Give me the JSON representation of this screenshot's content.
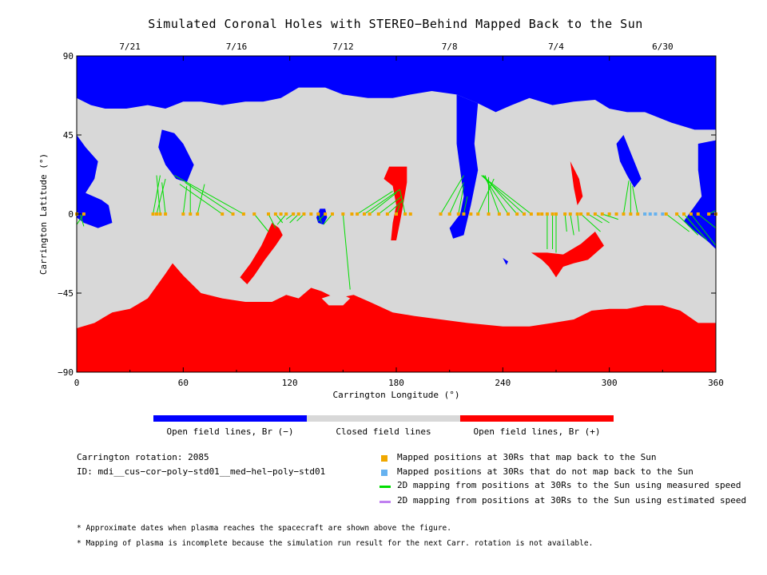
{
  "title": "Simulated Coronal Holes with STEREO−Behind Mapped Back to the Sun",
  "chart_data": {
    "type": "map",
    "xlabel": "Carrington Longitude (°)",
    "ylabel": "Carrington Latitude (°)",
    "xlim": [
      0,
      360
    ],
    "ylim": [
      -90,
      90
    ],
    "x_ticks": [
      "0",
      "60",
      "120",
      "180",
      "240",
      "300",
      "360"
    ],
    "y_ticks": [
      "90",
      "45",
      "0",
      "−45",
      "−90"
    ],
    "top_axis_dates": [
      {
        "label": "7/21",
        "lon": 30
      },
      {
        "label": "7/16",
        "lon": 90
      },
      {
        "label": "7/12",
        "lon": 150
      },
      {
        "label": "7/8",
        "lon": 210
      },
      {
        "label": "7/4",
        "lon": 270
      },
      {
        "label": "6/30",
        "lon": 330
      }
    ],
    "region_colors": {
      "negative": "#0000ff",
      "closed": "#d8d8d8",
      "positive": "#ff0000"
    },
    "mapped_positions": [
      0,
      4,
      43,
      45,
      47,
      50,
      60,
      64,
      68,
      82,
      88,
      94,
      100,
      108,
      112,
      115,
      118,
      122,
      125,
      128,
      132,
      136,
      140,
      144,
      150,
      155,
      158,
      162,
      165,
      170,
      175,
      180,
      185,
      188,
      205,
      210,
      215,
      218,
      222,
      226,
      232,
      238,
      243,
      248,
      252,
      256,
      260,
      262,
      265,
      268,
      270,
      275,
      278,
      282,
      284,
      288,
      292,
      296,
      300,
      304,
      308,
      312,
      316,
      320,
      332,
      338,
      342,
      346,
      350,
      356,
      360
    ],
    "unmapped_positions": [
      320,
      323,
      326,
      330
    ],
    "mapping_lines": [
      [
        2,
        0,
        4,
        -7
      ],
      [
        4,
        0,
        0,
        -6
      ],
      [
        43,
        0,
        47,
        22
      ],
      [
        45,
        0,
        50,
        20
      ],
      [
        47,
        0,
        45,
        22
      ],
      [
        50,
        0,
        48,
        18
      ],
      [
        60,
        0,
        62,
        16
      ],
      [
        64,
        0,
        64,
        17
      ],
      [
        68,
        0,
        72,
        17
      ],
      [
        82,
        0,
        58,
        17
      ],
      [
        88,
        0,
        61,
        18
      ],
      [
        94,
        0,
        55,
        22
      ],
      [
        100,
        0,
        108,
        -10
      ],
      [
        108,
        0,
        112,
        -8
      ],
      [
        112,
        0,
        116,
        -5
      ],
      [
        118,
        0,
        113,
        -6
      ],
      [
        122,
        0,
        118,
        -3
      ],
      [
        125,
        0,
        120,
        -5
      ],
      [
        128,
        0,
        124,
        -4
      ],
      [
        136,
        0,
        138,
        -5
      ],
      [
        140,
        0,
        136,
        -4
      ],
      [
        144,
        0,
        139,
        -6
      ],
      [
        150,
        0,
        154,
        -43
      ],
      [
        158,
        0,
        178,
        13
      ],
      [
        162,
        0,
        182,
        14
      ],
      [
        165,
        0,
        180,
        12
      ],
      [
        170,
        0,
        183,
        10
      ],
      [
        175,
        0,
        184,
        8
      ],
      [
        180,
        0,
        182,
        5
      ],
      [
        185,
        0,
        182,
        14
      ],
      [
        205,
        0,
        218,
        22
      ],
      [
        210,
        0,
        218,
        18
      ],
      [
        215,
        0,
        218,
        16
      ],
      [
        218,
        0,
        220,
        10
      ],
      [
        226,
        0,
        235,
        20
      ],
      [
        232,
        0,
        232,
        21
      ],
      [
        238,
        0,
        230,
        22
      ],
      [
        243,
        0,
        229,
        22
      ],
      [
        248,
        0,
        229,
        22
      ],
      [
        252,
        0,
        228,
        22
      ],
      [
        256,
        0,
        228,
        22
      ],
      [
        265,
        0,
        265,
        -20
      ],
      [
        268,
        0,
        268,
        -20
      ],
      [
        270,
        0,
        270,
        -22
      ],
      [
        275,
        0,
        276,
        -10
      ],
      [
        278,
        0,
        280,
        -12
      ],
      [
        282,
        0,
        283,
        -10
      ],
      [
        284,
        0,
        295,
        -10
      ],
      [
        288,
        0,
        296,
        -5
      ],
      [
        292,
        0,
        300,
        -5
      ],
      [
        296,
        0,
        305,
        -3
      ],
      [
        308,
        0,
        311,
        19
      ],
      [
        312,
        0,
        312,
        18
      ],
      [
        316,
        0,
        313,
        16
      ],
      [
        332,
        0,
        345,
        -10
      ],
      [
        338,
        0,
        350,
        -12
      ],
      [
        342,
        0,
        355,
        -15
      ],
      [
        346,
        0,
        360,
        -18
      ],
      [
        350,
        0,
        360,
        -8
      ],
      [
        356,
        0,
        360,
        2
      ]
    ],
    "colorbar": [
      {
        "label": "Open field lines, Br (−)",
        "color": "#0000ff"
      },
      {
        "label": "Closed field lines",
        "color": "#d8d8d8"
      },
      {
        "label": "Open field lines, Br (+)",
        "color": "#ff0000"
      }
    ],
    "legend": [
      {
        "label": "Mapped positions at 30Rs that map back to the Sun",
        "color": "#f0a800",
        "kind": "square"
      },
      {
        "label": "Mapped positions at 30Rs that do not map back to the Sun",
        "color": "#66b2f0",
        "kind": "square"
      },
      {
        "label": "2D mapping from positions at 30Rs to the Sun using measured speed",
        "color": "#00dd00",
        "kind": "line"
      },
      {
        "label": "2D mapping from positions at 30Rs to the Sun using estimated speed",
        "color": "#c080f0",
        "kind": "line"
      }
    ]
  },
  "info": {
    "carrington_rotation": "Carrington rotation: 2085",
    "id": "ID: mdi__cus−cor−poly−std01__med−hel−poly−std01"
  },
  "notes": [
    "* Approximate dates when plasma reaches the spacecraft are shown above the figure.",
    "* Mapping of plasma is incomplete because the simulation run result for the next Carr. rotation is not available."
  ]
}
